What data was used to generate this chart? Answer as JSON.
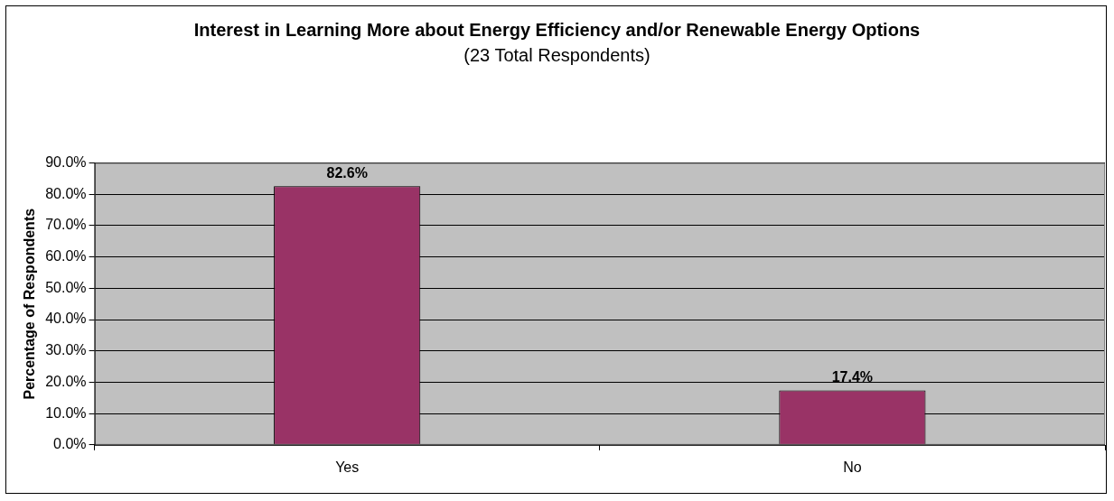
{
  "chart_data": {
    "type": "bar",
    "title": "Interest in Learning More about Energy Efficiency and/or Renewable Energy Options",
    "subtitle": "(23 Total Respondents)",
    "ylabel": "Percentage of Respondents",
    "categories": [
      "Yes",
      "No"
    ],
    "values": [
      82.6,
      17.4
    ],
    "color": "#993366",
    "value_labels": [
      "82.6%",
      "17.4%"
    ],
    "ylim": [
      0,
      90
    ],
    "yticks": [
      {
        "value": 0,
        "label": "0.0%"
      },
      {
        "value": 10,
        "label": "10.0%"
      },
      {
        "value": 20,
        "label": "20.0%"
      },
      {
        "value": 30,
        "label": "30.0%"
      },
      {
        "value": 40,
        "label": "40.0%"
      },
      {
        "value": 50,
        "label": "50.0%"
      },
      {
        "value": 60,
        "label": "60.0%"
      },
      {
        "value": 70,
        "label": "70.0%"
      },
      {
        "value": 80,
        "label": "80.0%"
      },
      {
        "value": 90,
        "label": "90.0%"
      }
    ],
    "grid": "y"
  }
}
